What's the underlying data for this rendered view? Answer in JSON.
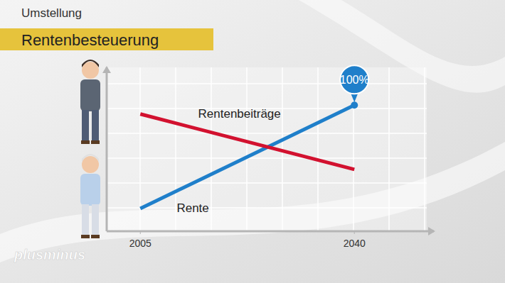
{
  "chart_data": {
    "type": "line",
    "supertitle": "Umstellung",
    "title": "Rentenbesteuerung",
    "x": [
      2005,
      2040
    ],
    "xlim": [
      1999.5,
      2053
    ],
    "xticks": [
      2005,
      2040
    ],
    "ylim": [
      0,
      130
    ],
    "yticks": [],
    "tick_labels": "x",
    "grid": true,
    "series": [
      {
        "name": "Rente",
        "color": "#1f7fca",
        "values": [
          18,
          100
        ]
      },
      {
        "name": "Rentenbeiträge",
        "color": "#d2112f",
        "values": [
          93,
          49
        ]
      }
    ],
    "annotations": [
      {
        "text": "100%",
        "x": 2040,
        "y": 100
      }
    ],
    "logo": "plusminus"
  }
}
